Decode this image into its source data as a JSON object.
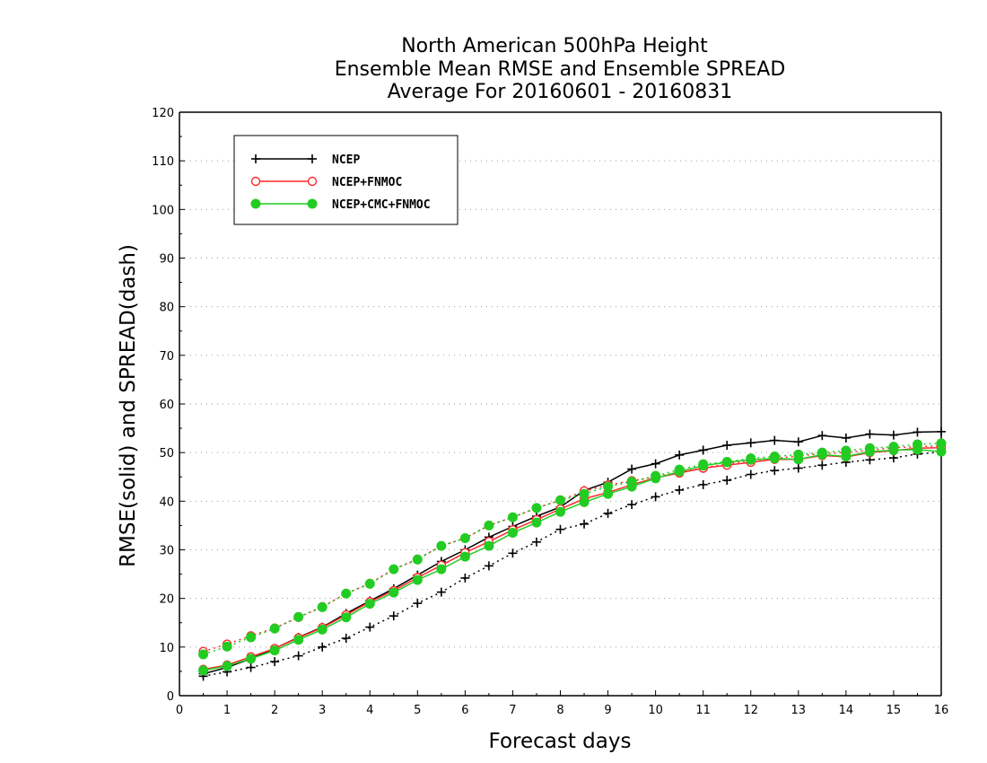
{
  "chart_data": {
    "type": "line",
    "title_lines": [
      "North American 500hPa Height",
      "Ensemble Mean RMSE and Ensemble SPREAD",
      "Average For 20160601 - 20160831"
    ],
    "xlabel": "Forecast days",
    "ylabel": "RMSE(solid) and SPREAD(dash)",
    "xlim": [
      0,
      16
    ],
    "ylim": [
      0,
      120
    ],
    "x_ticks": [
      0,
      1,
      2,
      3,
      4,
      5,
      6,
      7,
      8,
      9,
      10,
      11,
      12,
      13,
      14,
      15,
      16
    ],
    "y_ticks": [
      0,
      10,
      20,
      30,
      40,
      50,
      60,
      70,
      80,
      90,
      100,
      110,
      120
    ],
    "grid": "horizontal dotted",
    "legend_position": "top-left",
    "x": [
      0.5,
      1,
      1.5,
      2,
      2.5,
      3,
      3.5,
      4,
      4.5,
      5,
      5.5,
      6,
      6.5,
      7,
      7.5,
      8,
      8.5,
      9,
      9.5,
      10,
      10.5,
      11,
      11.5,
      12,
      12.5,
      13,
      13.5,
      14,
      14.5,
      15,
      15.5,
      16
    ],
    "series": [
      {
        "name": "NCEP",
        "color": "#000000",
        "marker": "plus",
        "rmse": [
          4.5,
          5.8,
          7.6,
          9.7,
          12.0,
          14.1,
          16.9,
          19.5,
          22.0,
          24.8,
          27.6,
          30.0,
          32.6,
          34.8,
          36.9,
          38.8,
          42.2,
          43.9,
          46.6,
          47.7,
          49.5,
          50.5,
          51.5,
          52.0,
          52.5,
          52.2,
          53.5,
          53.0,
          53.8,
          53.6,
          54.2,
          54.3
        ],
        "spread": [
          4.0,
          4.9,
          5.8,
          7.0,
          8.2,
          10.0,
          11.8,
          14.1,
          16.4,
          19.0,
          21.3,
          24.2,
          26.7,
          29.3,
          31.6,
          34.2,
          35.3,
          37.5,
          39.3,
          40.9,
          42.3,
          43.4,
          44.3,
          45.5,
          46.3,
          46.8,
          47.4,
          48.0,
          48.5,
          48.9,
          49.7,
          50.1
        ]
      },
      {
        "name": "NCEP+FNMOC",
        "color": "#ff2a2a",
        "marker": "circle-open",
        "rmse": [
          5.4,
          6.3,
          8.0,
          9.7,
          11.9,
          14.0,
          16.6,
          19.3,
          21.6,
          24.3,
          26.8,
          29.4,
          31.7,
          34.1,
          36.2,
          38.4,
          40.5,
          41.8,
          43.4,
          44.8,
          45.8,
          46.8,
          47.4,
          48.0,
          48.6,
          48.6,
          49.4,
          49.1,
          50.0,
          50.4,
          50.9,
          51.0
        ],
        "spread": [
          9.1,
          10.6,
          12.3,
          13.9,
          16.1,
          18.3,
          21.0,
          23.1,
          26.0,
          28.1,
          30.8,
          32.4,
          35.0,
          36.7,
          38.6,
          40.2,
          42.1,
          43.3,
          44.2,
          45.0,
          46.0,
          46.8,
          47.7,
          48.4,
          48.8,
          49.3,
          49.8,
          50.0,
          50.5,
          51.0,
          51.2,
          51.4
        ]
      },
      {
        "name": "NCEP+CMC+FNMOC",
        "color": "#22cc22",
        "marker": "circle-filled",
        "rmse": [
          5.2,
          6.1,
          7.6,
          9.3,
          11.5,
          13.6,
          16.1,
          18.9,
          21.2,
          23.8,
          26.0,
          28.6,
          30.8,
          33.5,
          35.6,
          37.8,
          39.8,
          41.5,
          43.0,
          44.7,
          46.1,
          47.3,
          48.0,
          48.5,
          48.8,
          48.6,
          49.6,
          49.2,
          50.2,
          50.5,
          50.6,
          50.2
        ],
        "spread": [
          8.5,
          10.1,
          12.0,
          13.8,
          16.2,
          18.2,
          21.0,
          23.0,
          26.0,
          28.0,
          30.8,
          32.4,
          35.0,
          36.7,
          38.6,
          40.2,
          41.5,
          43.0,
          44.0,
          45.2,
          46.5,
          47.6,
          48.1,
          48.8,
          49.2,
          49.6,
          50.0,
          50.4,
          50.9,
          51.2,
          51.7,
          51.9
        ]
      }
    ]
  }
}
